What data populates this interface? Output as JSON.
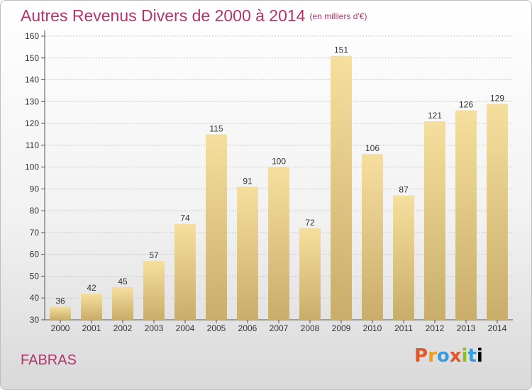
{
  "header": {
    "title": "Autres Revenus Divers de 2000 à 2014",
    "unit": "(en milliers d'€)"
  },
  "footer": {
    "commune": "FABRAS",
    "brand": "Proxiti"
  },
  "colors": {
    "title": "#b5336a",
    "bar_light": "#f6df9e",
    "bar_dark": "#c9ad6a"
  },
  "chart_data": {
    "type": "bar",
    "title": "Autres Revenus Divers de 2000 à 2014",
    "subtitle": "(en milliers d'€)",
    "xlabel": "",
    "ylabel": "",
    "categories": [
      "2000",
      "2001",
      "2002",
      "2003",
      "2004",
      "2005",
      "2006",
      "2007",
      "2008",
      "2009",
      "2010",
      "2011",
      "2012",
      "2013",
      "2014"
    ],
    "values": [
      36,
      42,
      45,
      57,
      74,
      115,
      91,
      100,
      72,
      151,
      106,
      87,
      121,
      126,
      129
    ],
    "ylim": [
      30,
      160
    ],
    "yticks": [
      30,
      40,
      50,
      60,
      70,
      80,
      90,
      100,
      110,
      120,
      130,
      140,
      150,
      160
    ],
    "grid": true,
    "data_labels": true
  }
}
